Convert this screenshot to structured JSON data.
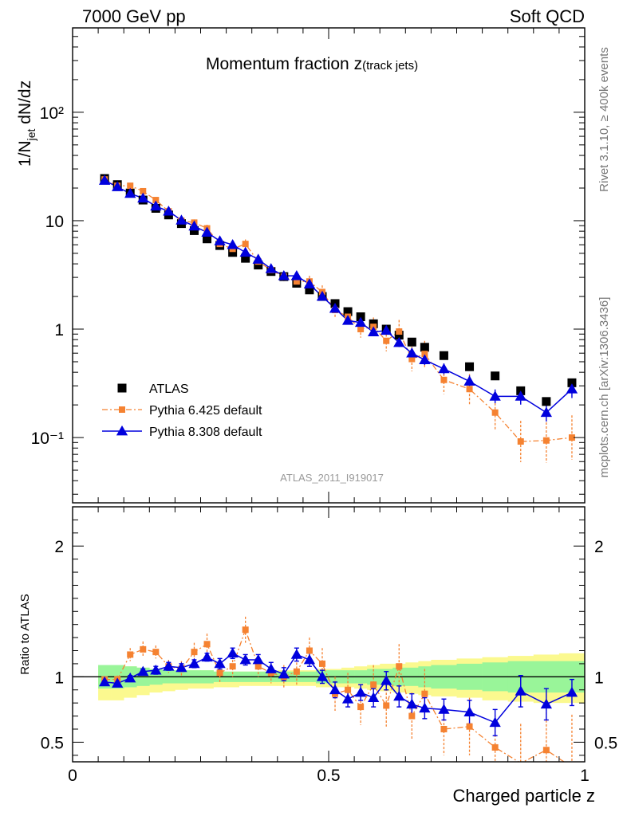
{
  "header": {
    "left": "7000 GeV pp",
    "right": "Soft QCD"
  },
  "colors": {
    "atlas": "#000000",
    "pythia6": "#f58231",
    "pythia8": "#0000dd",
    "band_inner": "#99f599",
    "band_outer": "#fbf98f"
  },
  "side_labels": {
    "rivet": "Rivet 3.1.10, ≥ 400k events",
    "mcplots": "mcplots.cern.ch [arXiv:1306.3436]"
  },
  "chart_data": [
    {
      "type": "scatter",
      "title": "Momentum fraction z",
      "title_sub": "(track jets)",
      "analysis": "ATLAS_2011_I919017",
      "ylabel": "1/N_jet dN/dz",
      "yscale": "log",
      "ylim": [
        0.025,
        600
      ],
      "xlim": [
        0,
        1
      ],
      "y_ticks": [
        "10⁻¹",
        "1",
        "10",
        "10²"
      ],
      "x": [
        0.0625,
        0.0875,
        0.1125,
        0.1375,
        0.1625,
        0.1875,
        0.2125,
        0.2375,
        0.2625,
        0.2875,
        0.3125,
        0.3375,
        0.3625,
        0.3875,
        0.4125,
        0.4375,
        0.4625,
        0.4875,
        0.5125,
        0.5375,
        0.5625,
        0.5875,
        0.6125,
        0.6375,
        0.6625,
        0.6875,
        0.725,
        0.775,
        0.825,
        0.875,
        0.925,
        0.975
      ],
      "series": [
        {
          "name": "ATLAS",
          "values": [
            24.5,
            21.5,
            18.0,
            15.5,
            13.0,
            11.3,
            9.4,
            8.1,
            6.8,
            5.9,
            5.1,
            4.5,
            3.9,
            3.4,
            3.05,
            2.65,
            2.3,
            2.0,
            1.72,
            1.45,
            1.3,
            1.12,
            1.0,
            0.88,
            0.76,
            0.68,
            0.57,
            0.45,
            0.37,
            0.27,
            0.215,
            0.32
          ]
        },
        {
          "name": "Pythia 6.425 default",
          "values": [
            24.0,
            21.0,
            21.0,
            18.7,
            15.5,
            12.2,
            10.0,
            9.6,
            8.5,
            6.1,
            5.5,
            6.1,
            4.2,
            3.5,
            3.05,
            2.75,
            2.75,
            2.2,
            1.5,
            1.3,
            1.0,
            1.05,
            0.78,
            0.95,
            0.53,
            0.59,
            0.34,
            0.28,
            0.17,
            0.092,
            0.094,
            0.1
          ]
        },
        {
          "name": "Pythia 8.308 default",
          "values": [
            23.5,
            20.5,
            17.8,
            16.1,
            13.6,
            12.2,
            10.1,
            8.9,
            7.8,
            6.5,
            6.0,
            5.1,
            4.4,
            3.6,
            3.1,
            3.1,
            2.6,
            2.0,
            1.55,
            1.2,
            1.15,
            0.94,
            0.97,
            0.75,
            0.6,
            0.52,
            0.43,
            0.33,
            0.24,
            0.24,
            0.17,
            0.28
          ]
        }
      ]
    },
    {
      "type": "scatter",
      "ylabel": "Ratio to ATLAS",
      "xlabel": "Charged particle z",
      "ylim": [
        0.35,
        2.3
      ],
      "xlim": [
        0,
        1
      ],
      "x_ticks": [
        "0",
        "0.5",
        "1"
      ],
      "y_ticks": [
        "0.5",
        "1",
        "2"
      ],
      "x": [
        0.0625,
        0.0875,
        0.1125,
        0.1375,
        0.1625,
        0.1875,
        0.2125,
        0.2375,
        0.2625,
        0.2875,
        0.3125,
        0.3375,
        0.3625,
        0.3875,
        0.4125,
        0.4375,
        0.4625,
        0.4875,
        0.5125,
        0.5375,
        0.5625,
        0.5875,
        0.6125,
        0.6375,
        0.6625,
        0.6875,
        0.725,
        0.775,
        0.825,
        0.875,
        0.925,
        0.975
      ],
      "band_edges": [
        0.05,
        0.075,
        0.1,
        0.125,
        0.15,
        0.175,
        0.2,
        0.225,
        0.25,
        0.275,
        0.3,
        0.325,
        0.35,
        0.375,
        0.4,
        0.425,
        0.45,
        0.475,
        0.5,
        0.525,
        0.55,
        0.575,
        0.6,
        0.625,
        0.65,
        0.675,
        0.7,
        0.75,
        0.8,
        0.85,
        0.9,
        0.95,
        1.0
      ],
      "band_inner": [
        [
          0.91,
          1.09
        ],
        [
          0.91,
          1.09
        ],
        [
          0.92,
          1.08
        ],
        [
          0.93,
          1.07
        ],
        [
          0.94,
          1.06
        ],
        [
          0.95,
          1.05
        ],
        [
          0.95,
          1.05
        ],
        [
          0.95,
          1.05
        ],
        [
          0.95,
          1.05
        ],
        [
          0.96,
          1.04
        ],
        [
          0.96,
          1.04
        ],
        [
          0.96,
          1.04
        ],
        [
          0.96,
          1.04
        ],
        [
          0.96,
          1.04
        ],
        [
          0.96,
          1.04
        ],
        [
          0.96,
          1.04
        ],
        [
          0.96,
          1.04
        ],
        [
          0.95,
          1.05
        ],
        [
          0.95,
          1.05
        ],
        [
          0.95,
          1.05
        ],
        [
          0.95,
          1.05
        ],
        [
          0.94,
          1.06
        ],
        [
          0.94,
          1.06
        ],
        [
          0.93,
          1.07
        ],
        [
          0.93,
          1.07
        ],
        [
          0.92,
          1.08
        ],
        [
          0.91,
          1.09
        ],
        [
          0.9,
          1.1
        ],
        [
          0.89,
          1.11
        ],
        [
          0.88,
          1.12
        ],
        [
          0.88,
          1.12
        ],
        [
          0.88,
          1.12
        ]
      ],
      "band_outer": [
        [
          0.82,
          1.08
        ],
        [
          0.82,
          1.08
        ],
        [
          0.84,
          1.08
        ],
        [
          0.86,
          1.07
        ],
        [
          0.88,
          1.06
        ],
        [
          0.89,
          1.05
        ],
        [
          0.9,
          1.05
        ],
        [
          0.91,
          1.05
        ],
        [
          0.91,
          1.05
        ],
        [
          0.92,
          1.04
        ],
        [
          0.92,
          1.04
        ],
        [
          0.93,
          1.04
        ],
        [
          0.93,
          1.04
        ],
        [
          0.93,
          1.04
        ],
        [
          0.93,
          1.05
        ],
        [
          0.93,
          1.05
        ],
        [
          0.93,
          1.05
        ],
        [
          0.92,
          1.06
        ],
        [
          0.92,
          1.06
        ],
        [
          0.92,
          1.07
        ],
        [
          0.91,
          1.08
        ],
        [
          0.9,
          1.09
        ],
        [
          0.89,
          1.1
        ],
        [
          0.88,
          1.1
        ],
        [
          0.87,
          1.11
        ],
        [
          0.86,
          1.12
        ],
        [
          0.85,
          1.13
        ],
        [
          0.84,
          1.14
        ],
        [
          0.82,
          1.15
        ],
        [
          0.81,
          1.16
        ],
        [
          0.8,
          1.17
        ],
        [
          0.8,
          1.18
        ]
      ],
      "series": [
        {
          "name": "Pythia 6.425 ratio",
          "values": [
            0.98,
            0.98,
            1.17,
            1.21,
            1.19,
            1.08,
            1.06,
            1.19,
            1.25,
            1.03,
            1.08,
            1.36,
            1.08,
            1.03,
            1.0,
            1.04,
            1.2,
            1.1,
            0.87,
            0.9,
            0.77,
            0.94,
            0.78,
            1.08,
            0.7,
            0.87,
            0.6,
            0.62,
            0.46,
            0.34,
            0.44,
            0.31
          ],
          "err": [
            0.02,
            0.03,
            0.05,
            0.06,
            0.05,
            0.05,
            0.06,
            0.07,
            0.08,
            0.07,
            0.08,
            0.1,
            0.08,
            0.08,
            0.09,
            0.1,
            0.1,
            0.12,
            0.13,
            0.13,
            0.14,
            0.15,
            0.16,
            0.17,
            0.18,
            0.19,
            0.2,
            0.22,
            0.25,
            0.3,
            0.35,
            0.4
          ]
        },
        {
          "name": "Pythia 8.308 ratio",
          "values": [
            0.96,
            0.95,
            0.99,
            1.04,
            1.05,
            1.08,
            1.07,
            1.1,
            1.15,
            1.1,
            1.18,
            1.13,
            1.13,
            1.06,
            1.02,
            1.17,
            1.13,
            1.0,
            0.9,
            0.83,
            0.88,
            0.84,
            0.97,
            0.85,
            0.79,
            0.76,
            0.75,
            0.73,
            0.65,
            0.89,
            0.79,
            0.88
          ],
          "err": [
            0.02,
            0.02,
            0.02,
            0.02,
            0.03,
            0.03,
            0.03,
            0.03,
            0.03,
            0.04,
            0.04,
            0.04,
            0.04,
            0.05,
            0.05,
            0.05,
            0.05,
            0.05,
            0.06,
            0.06,
            0.06,
            0.07,
            0.07,
            0.08,
            0.08,
            0.08,
            0.08,
            0.09,
            0.1,
            0.12,
            0.12,
            0.1
          ]
        }
      ]
    }
  ]
}
